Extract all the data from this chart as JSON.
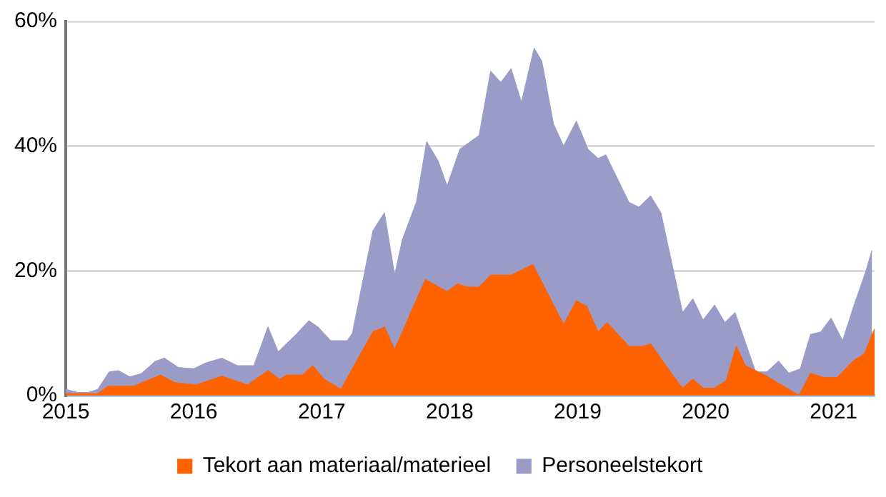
{
  "chart_data": {
    "type": "area",
    "xlim": [
      2015,
      2021.32
    ],
    "xticks": [
      2015,
      2016,
      2017,
      2018,
      2019,
      2020,
      2021
    ],
    "ylim": [
      0,
      60
    ],
    "yticks": [
      {
        "value": 0,
        "label": "0%"
      },
      {
        "value": 20,
        "label": "20%"
      },
      {
        "value": 40,
        "label": "40%"
      },
      {
        "value": 60,
        "label": "60%"
      }
    ],
    "grid": "y",
    "legend": "bottom",
    "series": [
      {
        "name": "Tekort aan materiaal/materieel",
        "color": "#ff6200",
        "x": [
          2015.0,
          2015.25,
          2015.33,
          2015.53,
          2015.74,
          2015.85,
          2016.02,
          2016.22,
          2016.42,
          2016.58,
          2016.67,
          2016.73,
          2016.85,
          2016.93,
          2017.02,
          2017.15,
          2017.4,
          2017.49,
          2017.57,
          2017.81,
          2017.98,
          2018.06,
          2018.14,
          2018.23,
          2018.32,
          2018.48,
          2018.65,
          2018.89,
          2018.99,
          2019.07,
          2019.16,
          2019.23,
          2019.4,
          2019.51,
          2019.57,
          2019.73,
          2019.82,
          2019.9,
          2019.98,
          2020.07,
          2020.16,
          2020.24,
          2020.31,
          2020.48,
          2020.73,
          2020.82,
          2020.92,
          2021.03,
          2021.15,
          2021.24,
          2021.32
        ],
        "values": [
          0.3,
          0.3,
          1.5,
          1.5,
          3.3,
          2.1,
          1.7,
          3.1,
          1.7,
          4,
          2.6,
          3.3,
          3.3,
          4.8,
          2.6,
          1,
          10.2,
          11,
          7.4,
          18.6,
          16.7,
          17.9,
          17.4,
          17.4,
          19.3,
          19.3,
          21,
          11.4,
          15.2,
          14.3,
          10.2,
          11.7,
          7.9,
          7.9,
          8.3,
          3.6,
          1.2,
          2.6,
          1.2,
          1.2,
          2.4,
          7.9,
          4.8,
          3.1,
          0,
          3.6,
          2.9,
          2.9,
          5.5,
          6.7,
          10.7
        ]
      },
      {
        "name": "Personeelstekort",
        "color": "#9b9bc8",
        "x": [
          2015.0,
          2015.09,
          2015.18,
          2015.25,
          2015.34,
          2015.41,
          2015.5,
          2015.59,
          2015.7,
          2015.77,
          2015.88,
          2016.0,
          2016.09,
          2016.22,
          2016.34,
          2016.47,
          2016.58,
          2016.66,
          2016.81,
          2016.9,
          2016.97,
          2017.07,
          2017.2,
          2017.24,
          2017.4,
          2017.49,
          2017.57,
          2017.63,
          2017.74,
          2017.82,
          2017.91,
          2017.98,
          2018.08,
          2018.23,
          2018.32,
          2018.4,
          2018.48,
          2018.56,
          2018.66,
          2018.72,
          2018.81,
          2018.89,
          2018.99,
          2019.08,
          2019.16,
          2019.22,
          2019.4,
          2019.48,
          2019.57,
          2019.65,
          2019.82,
          2019.9,
          2019.98,
          2020.07,
          2020.15,
          2020.23,
          2020.39,
          2020.48,
          2020.57,
          2020.65,
          2020.74,
          2020.82,
          2020.9,
          2020.98,
          2021.07,
          2021.16,
          2021.25,
          2021.3
        ],
        "values": [
          1,
          0.5,
          0.5,
          1,
          3.8,
          4,
          3,
          3.5,
          5.5,
          6,
          4.5,
          4.3,
          5.2,
          6,
          4.8,
          4.8,
          11,
          7,
          10,
          12,
          11,
          8.8,
          8.8,
          10,
          26.4,
          29.3,
          19.3,
          25,
          31,
          40.7,
          37.6,
          33.6,
          39.5,
          41.7,
          52,
          50.2,
          52.4,
          47,
          55.7,
          53.6,
          43.6,
          40,
          44,
          39.5,
          38,
          38.6,
          31,
          30.2,
          32,
          29.3,
          13.3,
          15.5,
          12.1,
          14.5,
          11.7,
          13.3,
          3.8,
          3.8,
          5.5,
          3.6,
          4.3,
          9.8,
          10.2,
          12.4,
          8.8,
          14.5,
          19.8,
          23.3
        ]
      }
    ]
  }
}
